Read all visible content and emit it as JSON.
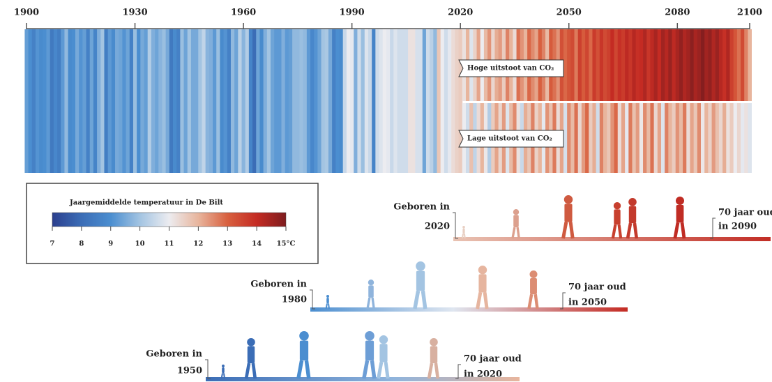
{
  "chart_data": {
    "type": "stripes",
    "legend_title": "Jaargemiddelde temperatuur in De Bilt",
    "xlim": [
      1900,
      2100
    ],
    "xticks": [
      1900,
      1930,
      1960,
      1990,
      2020,
      2050,
      2080,
      2100
    ],
    "clim": [
      7,
      15
    ],
    "cticks": [
      7,
      8,
      9,
      10,
      11,
      12,
      13,
      14,
      {
        "value": 15,
        "label": "15°C"
      }
    ],
    "colormap": [
      "#2b3f8e",
      "#3b6db6",
      "#4b8ed0",
      "#a3c4e2",
      "#ececf0",
      "#e8b59d",
      "#d8603f",
      "#c42b23",
      "#7e1d1f"
    ],
    "observed": {
      "x": [
        1900,
        1901,
        1902,
        1903,
        1904,
        1905,
        1906,
        1907,
        1908,
        1909,
        1910,
        1911,
        1912,
        1913,
        1914,
        1915,
        1916,
        1917,
        1918,
        1919,
        1920,
        1921,
        1922,
        1923,
        1924,
        1925,
        1926,
        1927,
        1928,
        1929,
        1930,
        1931,
        1932,
        1933,
        1934,
        1935,
        1936,
        1937,
        1938,
        1939,
        1940,
        1941,
        1942,
        1943,
        1944,
        1945,
        1946,
        1947,
        1948,
        1949,
        1950,
        1951,
        1952,
        1953,
        1954,
        1955,
        1956,
        1957,
        1958,
        1959,
        1960,
        1961,
        1962,
        1963,
        1964,
        1965,
        1966,
        1967,
        1968,
        1969,
        1970,
        1971,
        1972,
        1973,
        1974,
        1975,
        1976,
        1977,
        1978,
        1979,
        1980,
        1981,
        1982,
        1983,
        1984,
        1985,
        1986,
        1987,
        1988,
        1989,
        1990,
        1991,
        1992,
        1993,
        1994,
        1995,
        1996,
        1997,
        1998,
        1999,
        2000,
        2001,
        2002,
        2003,
        2004,
        2005,
        2006,
        2007,
        2008,
        2009,
        2010,
        2011,
        2012,
        2013,
        2014,
        2015,
        2016,
        2017,
        2018,
        2019,
        2020
      ],
      "values": [
        9.3,
        9.0,
        8.6,
        9.1,
        8.9,
        9.0,
        9.2,
        8.4,
        8.8,
        8.5,
        9.2,
        9.8,
        8.9,
        9.0,
        9.5,
        9.1,
        9.3,
        8.6,
        9.4,
        8.7,
        9.6,
        10.0,
        8.5,
        9.2,
        8.9,
        9.5,
        9.4,
        9.1,
        9.4,
        8.6,
        9.9,
        9.0,
        9.5,
        9.3,
        10.2,
        9.6,
        9.4,
        9.7,
        9.9,
        9.5,
        8.4,
        8.9,
        8.6,
        9.9,
        9.4,
        10.0,
        9.5,
        9.5,
        10.0,
        10.4,
        9.7,
        9.6,
        9.2,
        9.9,
        8.9,
        9.1,
        8.6,
        9.8,
        9.4,
        10.3,
        9.7,
        10.2,
        8.7,
        8.0,
        9.4,
        8.9,
        9.6,
        10.0,
        9.4,
        9.2,
        9.2,
        9.6,
        9.2,
        9.3,
        9.8,
        9.8,
        9.9,
        9.8,
        9.2,
        8.8,
        9.1,
        9.4,
        10.0,
        10.1,
        9.5,
        8.6,
        9.0,
        8.9,
        10.5,
        11.0,
        10.9,
        9.6,
        10.6,
        9.9,
        10.8,
        10.5,
        8.7,
        10.6,
        10.8,
        11.0,
        10.9,
        10.5,
        10.8,
        10.6,
        10.6,
        10.6,
        11.2,
        11.2,
        10.7,
        10.7,
        9.4,
        10.6,
        10.3,
        9.8,
        11.7,
        11.0,
        10.6,
        10.9,
        11.3,
        11.5,
        11.6
      ]
    },
    "scenarios": [
      {
        "name": "Hoge uitstoot van CO₂",
        "x": [
          2021,
          2022,
          2023,
          2024,
          2025,
          2026,
          2027,
          2028,
          2029,
          2030,
          2031,
          2032,
          2033,
          2034,
          2035,
          2036,
          2037,
          2038,
          2039,
          2040,
          2041,
          2042,
          2043,
          2044,
          2045,
          2046,
          2047,
          2048,
          2049,
          2050,
          2051,
          2052,
          2053,
          2054,
          2055,
          2056,
          2057,
          2058,
          2059,
          2060,
          2061,
          2062,
          2063,
          2064,
          2065,
          2066,
          2067,
          2068,
          2069,
          2070,
          2071,
          2072,
          2073,
          2074,
          2075,
          2076,
          2077,
          2078,
          2079,
          2080,
          2081,
          2082,
          2083,
          2084,
          2085,
          2086,
          2087,
          2088,
          2089,
          2090,
          2091,
          2092,
          2093,
          2094,
          2095,
          2096,
          2097,
          2098,
          2099,
          2100
        ],
        "values": [
          11.2,
          12.0,
          10.8,
          11.5,
          12.2,
          11.0,
          11.9,
          12.4,
          11.4,
          12.1,
          12.3,
          11.6,
          12.6,
          12.0,
          11.3,
          12.8,
          12.4,
          12.0,
          12.9,
          12.5,
          12.2,
          13.0,
          12.6,
          11.9,
          13.1,
          12.8,
          12.4,
          13.3,
          12.9,
          13.2,
          13.4,
          12.7,
          13.6,
          13.1,
          13.5,
          12.9,
          13.7,
          13.3,
          13.8,
          13.4,
          13.6,
          14.0,
          13.5,
          13.9,
          13.7,
          14.1,
          13.8,
          14.2,
          13.9,
          14.0,
          14.3,
          13.8,
          14.1,
          14.4,
          14.0,
          14.5,
          14.2,
          14.6,
          14.1,
          14.4,
          14.7,
          14.3,
          14.5,
          14.8,
          14.4,
          14.6,
          14.9,
          14.5,
          14.7,
          14.3,
          14.6,
          14.2,
          13.9,
          14.3,
          13.6,
          13.2,
          12.8,
          13.4,
          12.6,
          12.0
        ]
      },
      {
        "name": "Lage uitstoot van CO₂",
        "x": [
          2021,
          2022,
          2023,
          2024,
          2025,
          2026,
          2027,
          2028,
          2029,
          2030,
          2031,
          2032,
          2033,
          2034,
          2035,
          2036,
          2037,
          2038,
          2039,
          2040,
          2041,
          2042,
          2043,
          2044,
          2045,
          2046,
          2047,
          2048,
          2049,
          2050,
          2051,
          2052,
          2053,
          2054,
          2055,
          2056,
          2057,
          2058,
          2059,
          2060,
          2061,
          2062,
          2063,
          2064,
          2065,
          2066,
          2067,
          2068,
          2069,
          2070,
          2071,
          2072,
          2073,
          2074,
          2075,
          2076,
          2077,
          2078,
          2079,
          2080,
          2081,
          2082,
          2083,
          2084,
          2085,
          2086,
          2087,
          2088,
          2089,
          2090,
          2091,
          2092,
          2093,
          2094,
          2095,
          2096,
          2097,
          2098,
          2099,
          2100
        ],
        "values": [
          11.0,
          10.6,
          11.8,
          10.4,
          11.3,
          12.0,
          11.1,
          10.2,
          11.6,
          12.2,
          11.4,
          12.3,
          10.8,
          11.9,
          12.5,
          11.2,
          10.5,
          12.1,
          11.7,
          12.6,
          11.5,
          12.0,
          10.9,
          12.4,
          11.8,
          12.7,
          11.3,
          12.2,
          10.7,
          12.5,
          11.9,
          12.8,
          11.4,
          12.3,
          12.9,
          11.6,
          12.1,
          10.6,
          12.6,
          12.0,
          11.7,
          12.4,
          12.9,
          11.3,
          12.2,
          10.9,
          12.7,
          11.8,
          12.3,
          11.1,
          12.5,
          11.9,
          12.8,
          11.4,
          12.2,
          10.8,
          12.6,
          12.0,
          11.6,
          12.4,
          11.9,
          12.7,
          11.3,
          12.2,
          11.7,
          12.5,
          11.1,
          12.0,
          11.5,
          12.3,
          11.8,
          11.4,
          12.1,
          11.2,
          11.6,
          11.0,
          11.4,
          10.9,
          11.2,
          10.8
        ]
      }
    ],
    "generations": [
      {
        "born": [
          "Geboren in",
          "2020"
        ],
        "age": [
          "70 jaar oud",
          "in 2090"
        ]
      },
      {
        "born": [
          "Geboren in",
          "1980"
        ],
        "age": [
          "70 jaar oud",
          "in 2050"
        ]
      },
      {
        "born": [
          "Geboren in",
          "1950"
        ],
        "age": [
          "70 jaar oud",
          "in 2020"
        ]
      }
    ]
  }
}
